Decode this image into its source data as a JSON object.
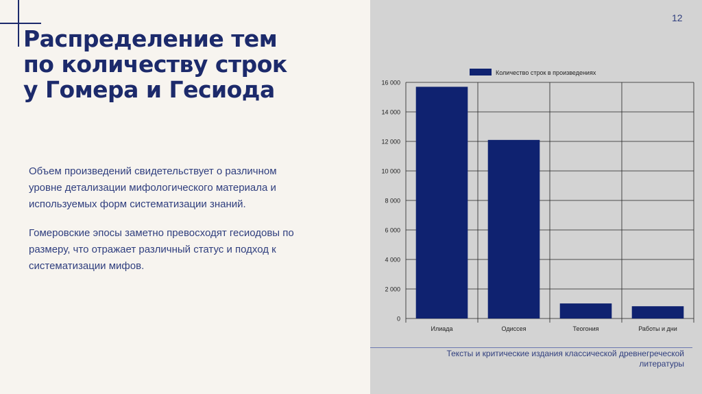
{
  "slide": {
    "page_number": "12",
    "title_lines": [
      "Распределение тем",
      "по количеству строк",
      "у Гомера и Гесиода"
    ],
    "paragraph1_lines": [
      "Объем произведений свидетельствует о различном",
      "уровне детализации мифологического материала и",
      "используемых форм систематизации знаний."
    ],
    "paragraph2_lines": [
      "Гомеровские эпосы заметно превосходят гесиодовы по",
      "размеру, что отражает различный статус и подход к",
      "систематизации мифов."
    ],
    "source_lines": [
      "Тексты и критические издания классической древнегреческой",
      "литературы"
    ]
  },
  "colors": {
    "accent": "#1c2a6b",
    "bar": "#0f2270",
    "chart_bg": "#d3d3d3",
    "slide_bg": "#f7f4ef"
  },
  "chart_data": {
    "type": "bar",
    "categories": [
      "Илиада",
      "Одиссея",
      "Теогония",
      "Работы и дни"
    ],
    "series": [
      {
        "name": "Количество строк в произведениях",
        "values": [
          15700,
          12100,
          1020,
          830
        ]
      }
    ],
    "ylim": [
      0,
      16000
    ],
    "yticks": [
      0,
      2000,
      4000,
      6000,
      8000,
      10000,
      12000,
      14000,
      16000
    ],
    "ytick_labels": [
      "0",
      "2 000",
      "4 000",
      "6 000",
      "8 000",
      "10 000",
      "12 000",
      "14 000",
      "16 000"
    ],
    "grid": true,
    "legend": "top"
  }
}
